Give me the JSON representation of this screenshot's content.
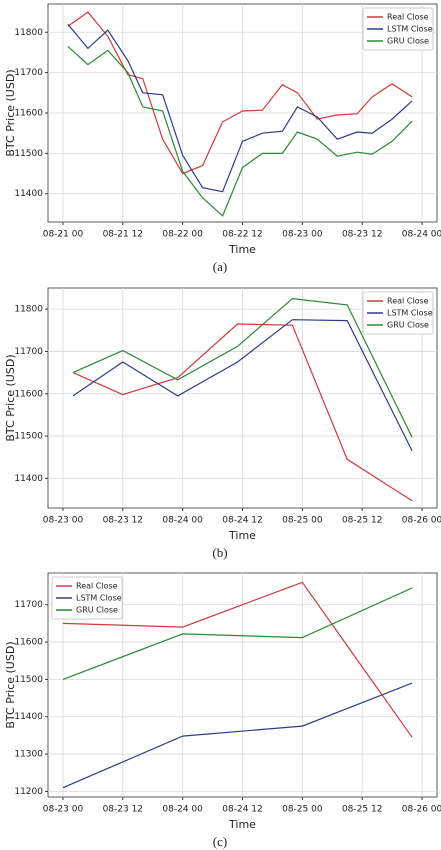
{
  "chart_data": [
    {
      "type": "line",
      "caption": "(a)",
      "x_label": "Time",
      "y_label": "BTC Price (USD)",
      "grid": true,
      "legend": "upper right",
      "x": [
        1,
        5,
        9,
        13,
        16,
        20,
        24,
        28,
        32,
        36,
        40,
        44,
        47,
        51,
        55,
        59,
        62,
        66,
        70
      ],
      "xlim": [
        -3,
        75
      ],
      "xticks": [
        {
          "value": 0,
          "label": "08-21 00"
        },
        {
          "value": 12,
          "label": "08-21 12"
        },
        {
          "value": 24,
          "label": "08-22 00"
        },
        {
          "value": 36,
          "label": "08-22 12"
        },
        {
          "value": 48,
          "label": "08-23 00"
        },
        {
          "value": 60,
          "label": "08-23 12"
        },
        {
          "value": 72,
          "label": "08-24 00"
        }
      ],
      "ylim": [
        11330,
        11870
      ],
      "yticks": [
        11400,
        11500,
        11600,
        11700,
        11800
      ],
      "series": [
        {
          "name": "Real Close",
          "color": "#d03a3a",
          "values": [
            11815,
            11850,
            11790,
            11695,
            11685,
            11535,
            11450,
            11470,
            11578,
            11605,
            11607,
            11670,
            11650,
            11585,
            11595,
            11598,
            11640,
            11672,
            11640
          ]
        },
        {
          "name": "LSTM Close",
          "color": "#2e3a8c",
          "values": [
            11820,
            11760,
            11805,
            11730,
            11650,
            11645,
            11495,
            11415,
            11405,
            11530,
            11550,
            11555,
            11615,
            11590,
            11535,
            11553,
            11550,
            11585,
            11630
          ]
        },
        {
          "name": "GRU Close",
          "color": "#2a8a30",
          "values": [
            11765,
            11720,
            11755,
            11700,
            11615,
            11605,
            11455,
            11390,
            11345,
            11465,
            11500,
            11500,
            11553,
            11535,
            11493,
            11503,
            11498,
            11530,
            11580
          ]
        }
      ]
    },
    {
      "type": "line",
      "caption": "(b)",
      "x_label": "Time",
      "y_label": "BTC Price (USD)",
      "grid": true,
      "legend": "upper right",
      "x": [
        2,
        12,
        23,
        35,
        46,
        57,
        70
      ],
      "xlim": [
        -3,
        75
      ],
      "xticks": [
        {
          "value": 0,
          "label": "08-23 00"
        },
        {
          "value": 12,
          "label": "08-23 12"
        },
        {
          "value": 24,
          "label": "08-24 00"
        },
        {
          "value": 36,
          "label": "08-24 12"
        },
        {
          "value": 48,
          "label": "08-25 00"
        },
        {
          "value": 60,
          "label": "08-25 12"
        },
        {
          "value": 72,
          "label": "08-26 00"
        }
      ],
      "ylim": [
        11330,
        11850
      ],
      "yticks": [
        11400,
        11500,
        11600,
        11700,
        11800
      ],
      "series": [
        {
          "name": "Real Close",
          "color": "#d03a3a",
          "values": [
            11650,
            11598,
            11638,
            11765,
            11762,
            11445,
            11347
          ]
        },
        {
          "name": "LSTM Close",
          "color": "#2e3a8c",
          "values": [
            11595,
            11675,
            11595,
            11675,
            11775,
            11773,
            11465
          ]
        },
        {
          "name": "GRU Close",
          "color": "#2a8a30",
          "values": [
            11650,
            11702,
            11633,
            11712,
            11825,
            11810,
            11497
          ]
        }
      ]
    },
    {
      "type": "line",
      "caption": "(c)",
      "x_label": "Time",
      "y_label": "BTC Price (USD)",
      "grid": true,
      "legend": "upper left",
      "x": [
        0,
        24,
        48,
        70
      ],
      "xlim": [
        -3,
        75
      ],
      "xticks": [
        {
          "value": 0,
          "label": "08-23 00"
        },
        {
          "value": 12,
          "label": "08-23 12"
        },
        {
          "value": 24,
          "label": "08-24 00"
        },
        {
          "value": 36,
          "label": "08-24 12"
        },
        {
          "value": 48,
          "label": "08-25 00"
        },
        {
          "value": 60,
          "label": "08-25 12"
        },
        {
          "value": 72,
          "label": "08-26 00"
        }
      ],
      "ylim": [
        11185,
        11785
      ],
      "yticks": [
        11200,
        11300,
        11400,
        11500,
        11600,
        11700
      ],
      "series": [
        {
          "name": "Real Close",
          "color": "#d03a3a",
          "values": [
            11650,
            11640,
            11760,
            11345
          ]
        },
        {
          "name": "LSTM Close",
          "color": "#2e3a8c",
          "values": [
            11210,
            11348,
            11375,
            11490
          ]
        },
        {
          "name": "GRU Close",
          "color": "#2a8a30",
          "values": [
            11500,
            11622,
            11612,
            11745
          ]
        }
      ]
    }
  ]
}
